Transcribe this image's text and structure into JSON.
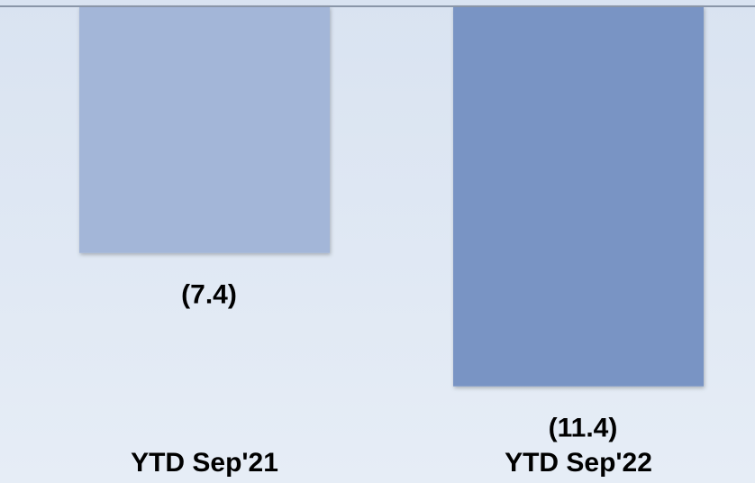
{
  "chart_data": {
    "type": "bar",
    "categories": [
      "YTD Sep'21",
      "YTD Sep'22"
    ],
    "values": [
      -7.4,
      -11.4
    ],
    "value_labels": [
      "(7.4)",
      "(11.4)"
    ],
    "colors": [
      "#a3b6d8",
      "#7994c4"
    ],
    "ylim": [
      -14.3,
      0
    ]
  }
}
